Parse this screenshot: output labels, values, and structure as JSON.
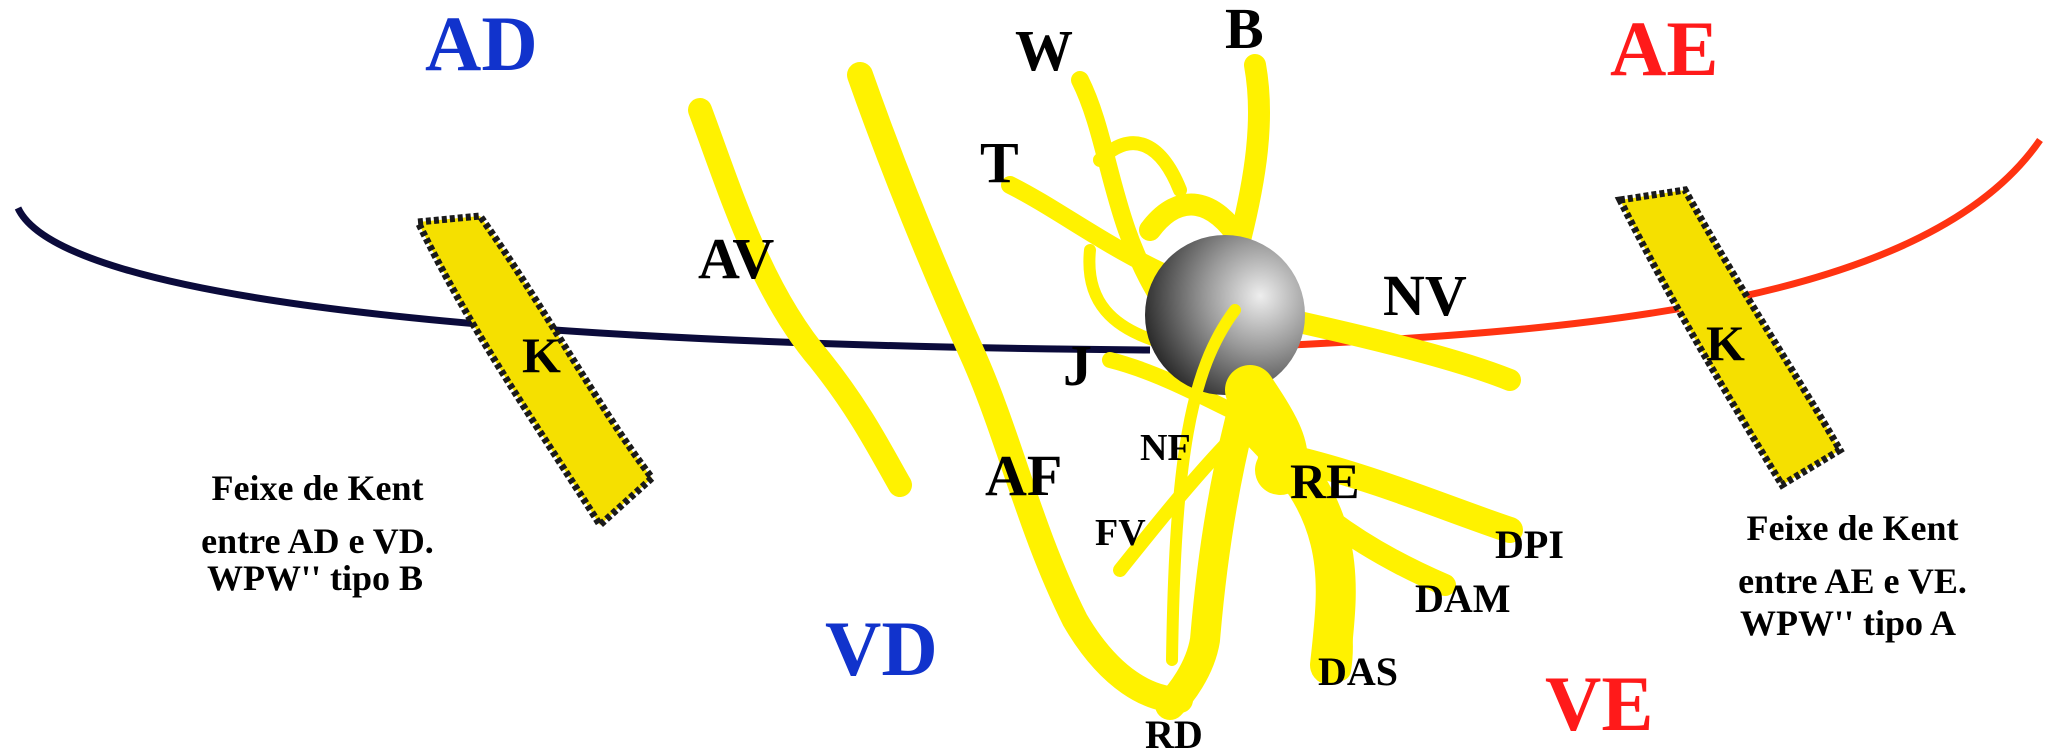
{
  "labels": {
    "AD": "AD",
    "AE": "AE",
    "VD": "VD",
    "VE": "VE",
    "W": "W",
    "B": "B",
    "T": "T",
    "AV": "AV",
    "NV": "NV",
    "J": "J",
    "K_left": "K",
    "K_right": "K",
    "NF": "NF",
    "AF": "AF",
    "RE": "RE",
    "FV": "FV",
    "DPI": "DPI",
    "DAM": "DAM",
    "DAS": "DAS",
    "RD": "RD"
  },
  "captions": {
    "left": [
      "Feixe de Kent",
      "entre AD e VD.",
      "WPW'' tipo B"
    ],
    "right": [
      "Feixe de Kent",
      "entre AE e VE.",
      "WPW'' tipo A"
    ]
  },
  "colors": {
    "right_side": "#1133cc",
    "left_side": "#ff1a1a",
    "fiber": "#fff200",
    "kent_bundle": "#f5e000",
    "kent_outline": "#1a1a1a",
    "av_ring_right": "#0b0b3b",
    "av_ring_left": "#ff3311",
    "node_dark": "#3a3a3a",
    "node_light": "#e6e6e6",
    "text": "#000000"
  }
}
